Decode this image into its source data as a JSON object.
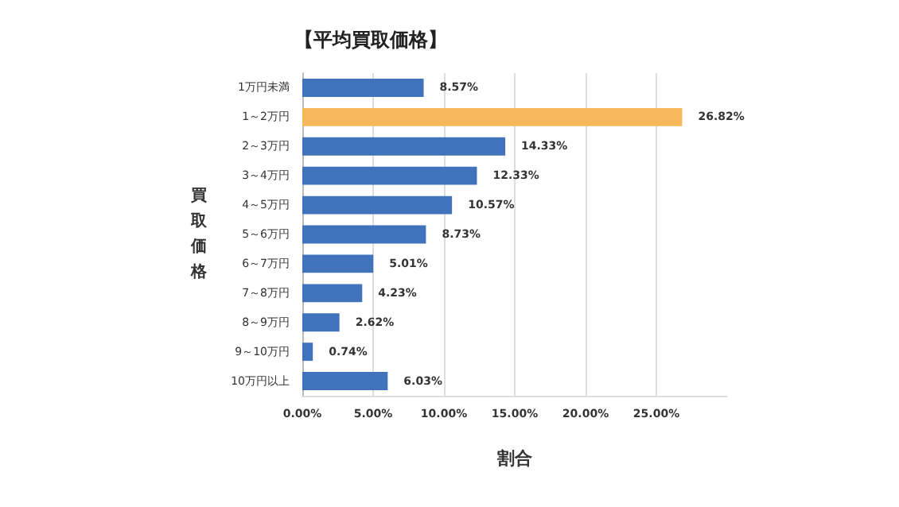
{
  "chart_data": {
    "type": "bar",
    "orientation": "horizontal",
    "title": "【平均買取価格】",
    "xlabel": "割合",
    "ylabel": "買取価格",
    "categories": [
      "1万円未満",
      "1～2万円",
      "2～3万円",
      "3～4万円",
      "4～5万円",
      "5～6万円",
      "6～7万円",
      "7～8万円",
      "8～9万円",
      "9～10万円",
      "10万円以上"
    ],
    "values": [
      8.57,
      26.82,
      14.33,
      12.33,
      10.57,
      8.73,
      5.01,
      4.23,
      2.62,
      0.74,
      6.03
    ],
    "value_labels": [
      "8.57%",
      "26.82%",
      "14.33%",
      "12.33%",
      "10.57%",
      "8.73%",
      "5.01%",
      "4.23%",
      "2.62%",
      "0.74%",
      "6.03%"
    ],
    "colors": [
      "#4173bd",
      "#f7b85b",
      "#4173bd",
      "#4173bd",
      "#4173bd",
      "#4173bd",
      "#4173bd",
      "#4173bd",
      "#4173bd",
      "#4173bd",
      "#4173bd"
    ],
    "xlim": [
      0,
      30
    ],
    "xticks": [
      {
        "value": 0,
        "label": "0.00%"
      },
      {
        "value": 5,
        "label": "5.00%"
      },
      {
        "value": 10,
        "label": "10.00%"
      },
      {
        "value": 15,
        "label": "15.00%"
      },
      {
        "value": 20,
        "label": "20.00%"
      },
      {
        "value": 25,
        "label": "25.00%"
      }
    ],
    "grid": "x"
  }
}
